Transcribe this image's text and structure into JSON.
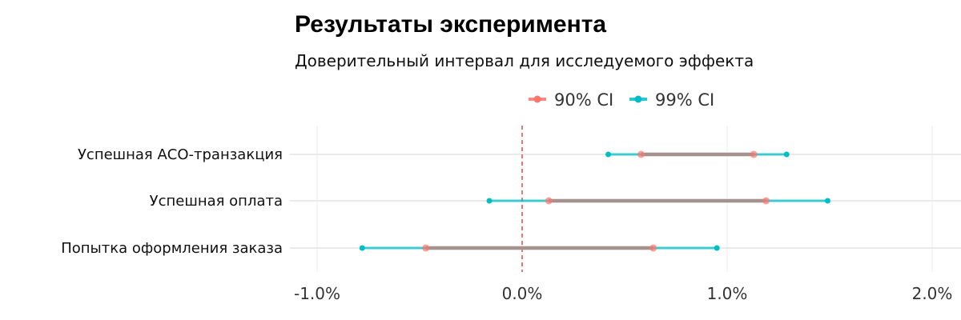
{
  "title": "Результаты эксперимента",
  "subtitle": "Доверительный интервал для исследуемого эффекта",
  "chart_data": {
    "type": "interval",
    "title": "Результаты эксперимента",
    "subtitle": "Доверительный интервал для исследуемого эффекта",
    "xlabel": "",
    "ylabel": "",
    "x_format": "percent",
    "xlim": [
      -1.2,
      2.1
    ],
    "x_ticks": [
      -1.0,
      0.0,
      1.0,
      2.0
    ],
    "x_tick_labels": [
      "-1.0%",
      "0.0%",
      "1.0%",
      "2.0%"
    ],
    "reference_line": 0.0,
    "legend_position": "top",
    "grid": true,
    "categories": [
      "Успешная АСО-транзакция",
      "Успешная оплата",
      "Попытка оформления заказа"
    ],
    "series": [
      {
        "name": "90% CI",
        "color": "#F8766D",
        "intervals": [
          [
            0.58,
            1.13
          ],
          [
            0.13,
            1.19
          ],
          [
            -0.47,
            0.64
          ]
        ]
      },
      {
        "name": "99% CI",
        "color": "#00BFC4",
        "intervals": [
          [
            0.42,
            1.29
          ],
          [
            -0.16,
            1.49
          ],
          [
            -0.78,
            0.95
          ]
        ]
      }
    ]
  }
}
